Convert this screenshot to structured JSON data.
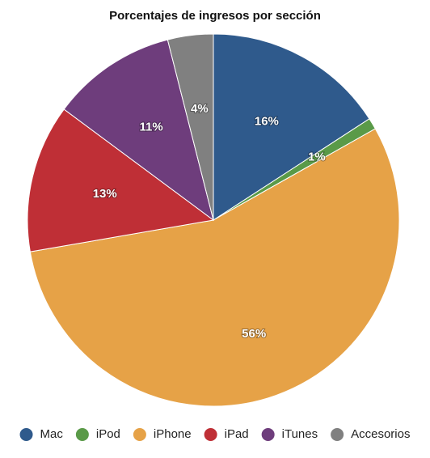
{
  "chart_data": {
    "type": "pie",
    "title": "Porcentajes de ingresos por sección",
    "categories": [
      "Mac",
      "iPod",
      "iPhone",
      "iPad",
      "iTunes",
      "Accesorios"
    ],
    "values": [
      16,
      1,
      56,
      13,
      11,
      4
    ],
    "value_labels": [
      "16%",
      "1%",
      "56%",
      "13%",
      "11%",
      "4%"
    ],
    "colors": [
      "#2f5a8c",
      "#5a9a48",
      "#e6a247",
      "#bf2f36",
      "#6e3d7c",
      "#808080"
    ],
    "legend": "bottom"
  }
}
